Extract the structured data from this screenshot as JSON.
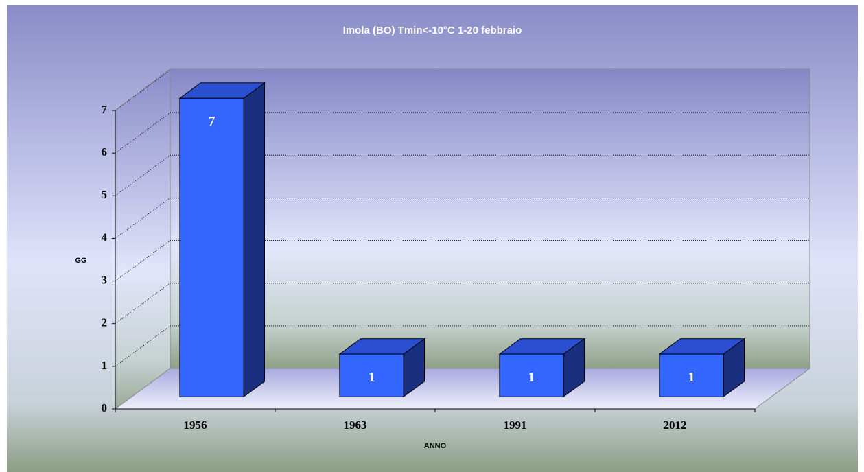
{
  "chart_data": {
    "type": "bar",
    "title": "Imola (BO) Tmin<-10°C 1-20 febbraio",
    "categories": [
      "1956",
      "1963",
      "1991",
      "2012"
    ],
    "values": [
      7,
      1,
      1,
      1
    ],
    "color": "#3366ff",
    "ylim": [
      0,
      7
    ],
    "yticks": [
      0,
      1,
      2,
      3,
      4,
      5,
      6,
      7
    ],
    "grid": true,
    "y_label": "GG",
    "x_label": "ANNO"
  }
}
